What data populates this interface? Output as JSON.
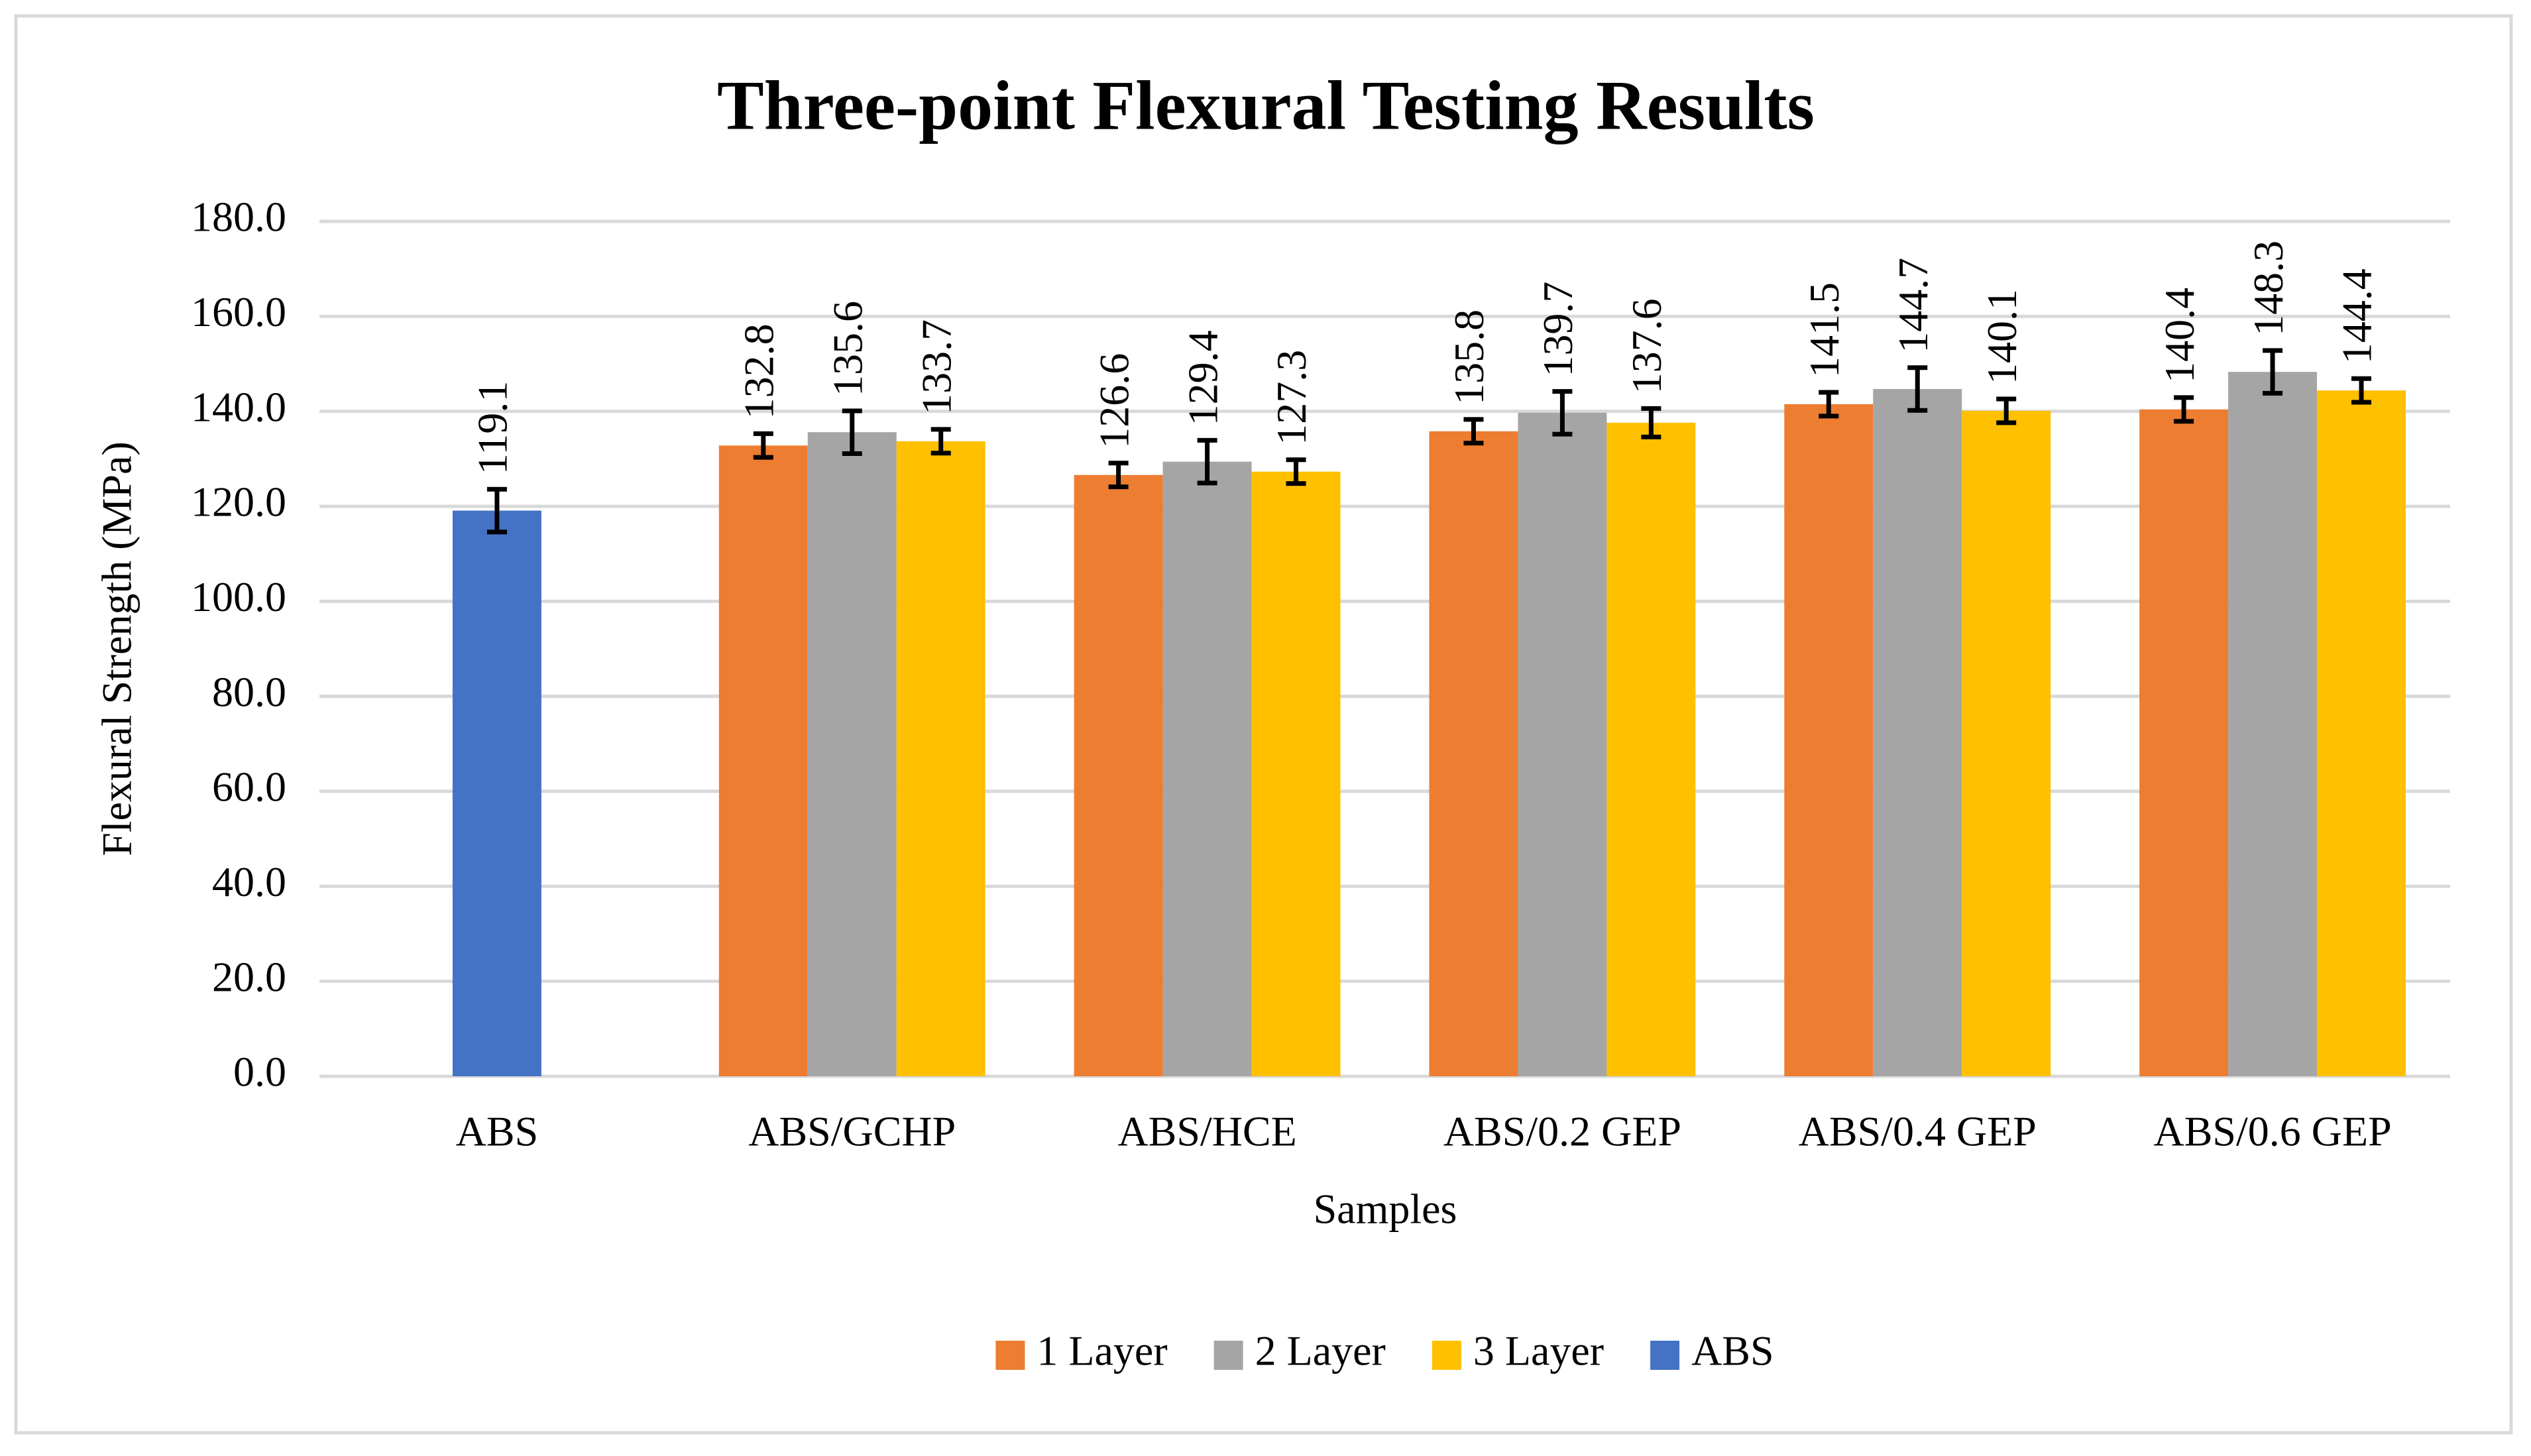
{
  "chart_data": {
    "type": "bar",
    "title": "Three-point Flexural Testing Results",
    "x_label": "Samples",
    "y_label": "Flexural Strength (MPa)",
    "categories": [
      "ABS",
      "ABS/GCHP",
      "ABS/HCE",
      "ABS/0.2 GEP",
      "ABS/0.4 GEP",
      "ABS/0.6 GEP"
    ],
    "series": [
      {
        "name": "1 Layer",
        "color": "#ED7D31",
        "values": [
          null,
          132.8,
          126.6,
          135.8,
          141.5,
          140.4
        ],
        "errors": [
          null,
          2.5,
          2.5,
          2.5,
          2.5,
          2.5
        ]
      },
      {
        "name": "2 Layer",
        "color": "#A5A5A5",
        "values": [
          null,
          135.6,
          129.4,
          139.7,
          144.7,
          148.3
        ],
        "errors": [
          null,
          4.5,
          4.5,
          4.5,
          4.5,
          4.5
        ]
      },
      {
        "name": "3 Layer",
        "color": "#FFC000",
        "values": [
          null,
          133.7,
          127.3,
          137.6,
          140.1,
          144.4
        ],
        "errors": [
          null,
          2.5,
          2.5,
          3,
          2.5,
          2.5
        ]
      },
      {
        "name": "ABS",
        "color": "#4472C4",
        "values": [
          119.1,
          null,
          null,
          null,
          null,
          null
        ],
        "errors": [
          4.5,
          null,
          null,
          null,
          null,
          null
        ]
      }
    ],
    "ylim": [
      0,
      180
    ],
    "yticks": [
      {
        "value": 0,
        "label": "0.0"
      },
      {
        "value": 20,
        "label": "20.0"
      },
      {
        "value": 40,
        "label": "40.0"
      },
      {
        "value": 60,
        "label": "60.0"
      },
      {
        "value": 80,
        "label": "80.0"
      },
      {
        "value": 100,
        "label": "100.0"
      },
      {
        "value": 120,
        "label": "120.0"
      },
      {
        "value": 140,
        "label": "140.0"
      },
      {
        "value": 160,
        "label": "160.0"
      },
      {
        "value": 180,
        "label": "180.0"
      }
    ],
    "grid": true,
    "legend": "bottom"
  }
}
